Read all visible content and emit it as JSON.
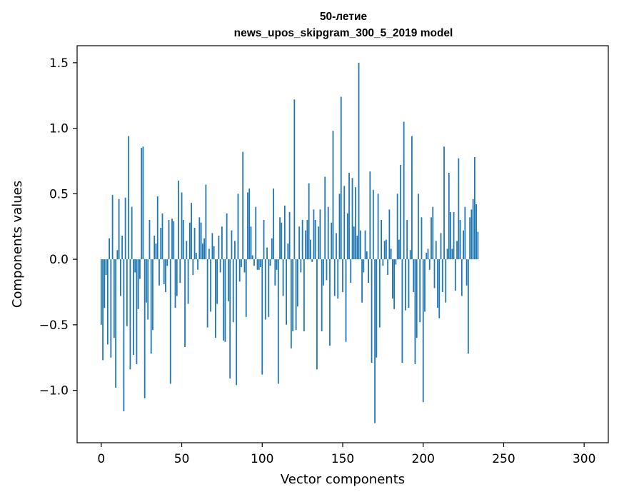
{
  "chart_data": {
    "type": "bar",
    "title_line1": "50-летие",
    "title_line2": "news_upos_skipgram_300_5_2019 model",
    "xlabel": "Vector components",
    "ylabel": "Components values",
    "xlim": [
      -15,
      315
    ],
    "ylim": [
      -1.4,
      1.63
    ],
    "x_ticks": [
      0,
      50,
      100,
      150,
      200,
      250,
      300
    ],
    "x_tick_labels": [
      "0",
      "50",
      "100",
      "150",
      "200",
      "250",
      "300"
    ],
    "y_ticks": [
      -1.0,
      -0.5,
      0.0,
      0.5,
      1.0,
      1.5
    ],
    "y_tick_labels": [
      "−1.0",
      "−0.5",
      "0.0",
      "0.5",
      "1.0",
      "1.5"
    ],
    "bar_color": "#1f77b4",
    "grid": false,
    "legend": "none",
    "series": [
      {
        "values": [
          -0.5,
          -0.77,
          -0.37,
          -0.12,
          -0.65,
          0.16,
          -0.75,
          0.49,
          -0.6,
          -0.98,
          0.07,
          0.46,
          -0.28,
          0.18,
          -1.16,
          0.47,
          -0.51,
          0.94,
          -0.84,
          0.4,
          -0.73,
          -0.1,
          -0.8,
          -0.38,
          -0.15,
          0.85,
          0.86,
          -1.06,
          -0.33,
          -0.46,
          0.3,
          -0.72,
          -0.54,
          0.18,
          0.12,
          0.48,
          -0.2,
          0.24,
          0.35,
          -0.19,
          -0.25,
          -0.05,
          0.3,
          -0.95,
          0.31,
          0.29,
          -0.37,
          -0.28,
          0.6,
          -0.18,
          0.51,
          0.3,
          -0.67,
          0.14,
          -0.34,
          0.28,
          0.43,
          -0.12,
          0.24,
          0.05,
          -0.08,
          0.32,
          0.28,
          0.12,
          0.16,
          0.57,
          -0.52,
          0.08,
          -0.4,
          0.2,
          0.1,
          -0.6,
          -0.34,
          0.18,
          -0.1,
          0.25,
          -0.62,
          -0.63,
          0.35,
          -0.32,
          -0.91,
          0.22,
          -0.48,
          0.14,
          -0.96,
          0.5,
          -0.17,
          -0.06,
          0.82,
          -0.1,
          -0.44,
          0.51,
          0.54,
          0.25,
          0.03,
          -0.05,
          0.4,
          -0.08,
          -0.08,
          -0.06,
          -0.88,
          0.3,
          -0.46,
          0.09,
          -0.44,
          -0.05,
          0.16,
          0.54,
          -0.2,
          -0.08,
          -0.95,
          0.32,
          0.28,
          -0.28,
          0.41,
          -0.5,
          0.12,
          0.36,
          -0.68,
          -0.55,
          1.22,
          -0.54,
          -0.36,
          0.25,
          -0.1,
          0.3,
          -0.55,
          0.22,
          0.3,
          0.58,
          0.15,
          -0.02,
          0.38,
          0.3,
          -0.84,
          0.25,
          0.38,
          -0.55,
          -0.2,
          0.63,
          -0.16,
          0.4,
          -0.66,
          0.28,
          0.98,
          -0.28,
          0.2,
          -0.3,
          0.5,
          1.24,
          -0.25,
          0.56,
          -0.63,
          0.35,
          0.66,
          -0.18,
          0.62,
          0.25,
          0.55,
          0.18,
          1.5,
          0.22,
          -0.33,
          -0.1,
          0.22,
          0.06,
          -0.18,
          0.67,
          -0.79,
          0.53,
          -1.25,
          -0.75,
          0.5,
          -0.52,
          0.3,
          -0.05,
          0.14,
          0.15,
          -0.12,
          0.38,
          0.08,
          -0.3,
          -0.38,
          -0.04,
          0.5,
          0.15,
          0.72,
          -0.79,
          1.05,
          -0.39,
          0.3,
          -0.37,
          0.07,
          0.94,
          -0.25,
          -0.8,
          -0.6,
          0.5,
          -0.48,
          0.32,
          -1.09,
          -0.4,
          0.05,
          0.08,
          -0.08,
          0.32,
          0.4,
          -0.22,
          0.14,
          -0.37,
          -0.45,
          0.2,
          -0.25,
          0.86,
          -0.33,
          0.08,
          0.66,
          0.36,
          0.08,
          0.36,
          -0.24,
          0.14,
          0.77,
          0.3,
          -0.28,
          0.22,
          0.4,
          -0.2,
          -0.72,
          0.32,
          0.38,
          0.46,
          0.78,
          0.42,
          0.21
        ]
      }
    ]
  }
}
